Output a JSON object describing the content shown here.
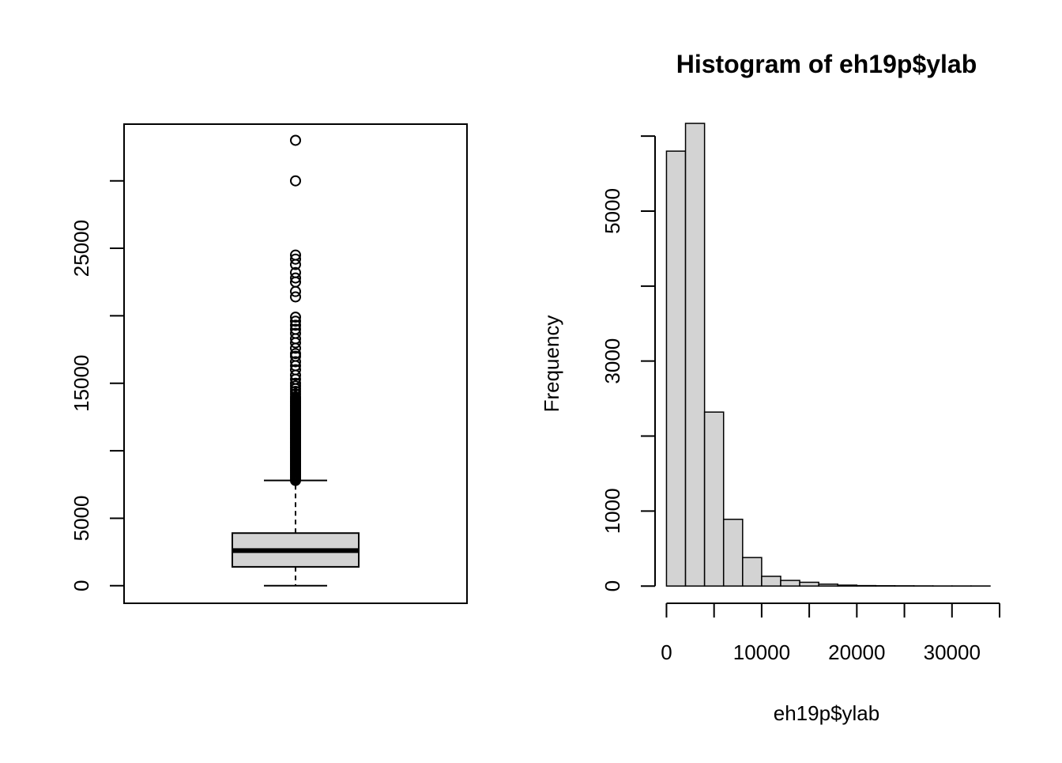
{
  "colors": {
    "box_fill": "#d3d3d3",
    "bar_fill": "#d3d3d3",
    "stroke": "#000000",
    "background": "#ffffff"
  },
  "chart_data": [
    {
      "type": "boxplot",
      "title": "",
      "xlabel": "",
      "ylabel": "",
      "ylim": [
        -1300,
        34200
      ],
      "yticks": [
        0,
        5000,
        10000,
        15000,
        20000,
        25000,
        30000
      ],
      "ytick_labels": [
        "0",
        "5000",
        "",
        "15000",
        "",
        "25000",
        ""
      ],
      "box": {
        "lower_whisker": 0,
        "q1": 1400,
        "median": 2600,
        "q3": 3900,
        "upper_whisker": 7800
      },
      "outliers": [
        7800,
        7900,
        8000,
        8100,
        8200,
        8300,
        8400,
        8500,
        8600,
        8700,
        8800,
        8900,
        9000,
        9100,
        9200,
        9300,
        9400,
        9500,
        9600,
        9700,
        9800,
        9900,
        10000,
        10100,
        10200,
        10300,
        10400,
        10500,
        10600,
        10700,
        10800,
        10900,
        11000,
        11100,
        11200,
        11300,
        11400,
        11500,
        11600,
        11700,
        11800,
        11900,
        12000,
        12100,
        12200,
        12300,
        12400,
        12500,
        12600,
        12700,
        12800,
        12900,
        13000,
        13100,
        13200,
        13300,
        13400,
        13500,
        13600,
        13700,
        13800,
        13900,
        14000,
        14200,
        14400,
        14600,
        14800,
        15000,
        15300,
        15600,
        16000,
        16300,
        16600,
        17000,
        17200,
        17600,
        18000,
        18300,
        18700,
        19000,
        19300,
        19600,
        19900,
        21400,
        21800,
        22500,
        22800,
        23200,
        23800,
        24200,
        24500,
        30000,
        33000
      ]
    },
    {
      "type": "histogram",
      "title": "Histogram of eh19p$ylab",
      "xlabel": "eh19p$ylab",
      "ylabel": "Frequency",
      "xlim": [
        -1200,
        35000
      ],
      "ylim": [
        -230,
        6160
      ],
      "xticks": [
        0,
        5000,
        10000,
        15000,
        20000,
        25000,
        30000,
        35000
      ],
      "xtick_labels": [
        "0",
        "",
        "10000",
        "",
        "20000",
        "",
        "30000",
        ""
      ],
      "yticks": [
        0,
        1000,
        2000,
        3000,
        4000,
        5000,
        6000
      ],
      "ytick_labels": [
        "0",
        "1000",
        "",
        "3000",
        "",
        "5000",
        ""
      ],
      "bin_edges": [
        0,
        2000,
        4000,
        6000,
        8000,
        10000,
        12000,
        14000,
        16000,
        18000,
        20000,
        22000,
        24000,
        26000,
        28000,
        30000,
        32000,
        34000
      ],
      "counts": [
        5800,
        6170,
        2320,
        890,
        380,
        130,
        75,
        50,
        25,
        12,
        6,
        4,
        3,
        2,
        1,
        1,
        1
      ]
    }
  ]
}
